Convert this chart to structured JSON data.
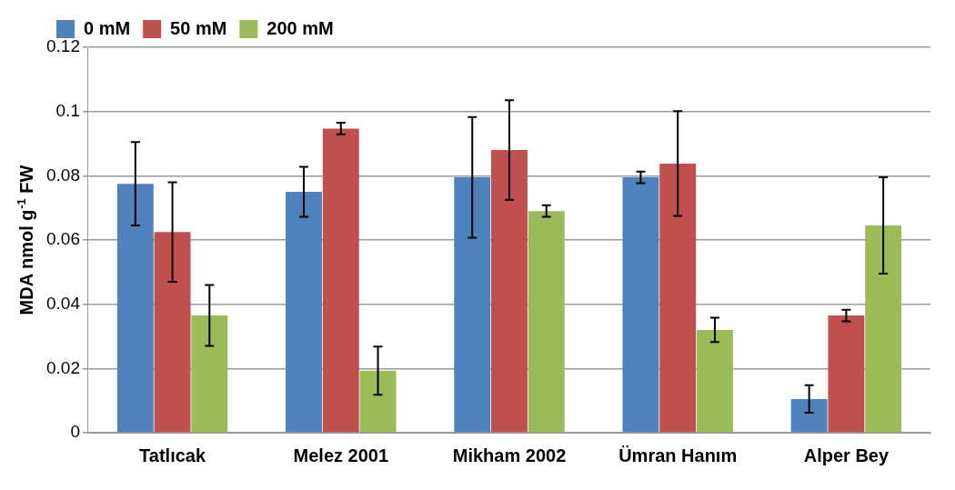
{
  "chart_data": {
    "type": "bar",
    "ylabel": "MDA nmol g$^{-1}$ FW",
    "categories": [
      "Tatlıcak",
      "Melez 2001",
      "Mikham 2002",
      "Ümran Hanım",
      "Alper Bey"
    ],
    "series": [
      {
        "name": "0 mM",
        "color": "#4f81bd",
        "values": [
          0.0775,
          0.075,
          0.0795,
          0.0795,
          0.0105
        ],
        "errors": [
          0.013,
          0.0078,
          0.0188,
          0.0018,
          0.0043
        ]
      },
      {
        "name": "50 mM",
        "color": "#c0504d",
        "values": [
          0.0625,
          0.0947,
          0.088,
          0.0838,
          0.0365
        ],
        "errors": [
          0.0155,
          0.0018,
          0.0155,
          0.0163,
          0.0018
        ]
      },
      {
        "name": "200 mM",
        "color": "#9bbb59",
        "values": [
          0.0365,
          0.0193,
          0.069,
          0.032,
          0.0645
        ],
        "errors": [
          0.0095,
          0.0075,
          0.0018,
          0.0038,
          0.015
        ]
      }
    ],
    "ylim": [
      0,
      0.12
    ],
    "yticks": [
      0,
      0.02,
      0.04,
      0.06,
      0.08,
      0.1,
      0.12
    ],
    "grid": "y",
    "legend": "top left"
  }
}
